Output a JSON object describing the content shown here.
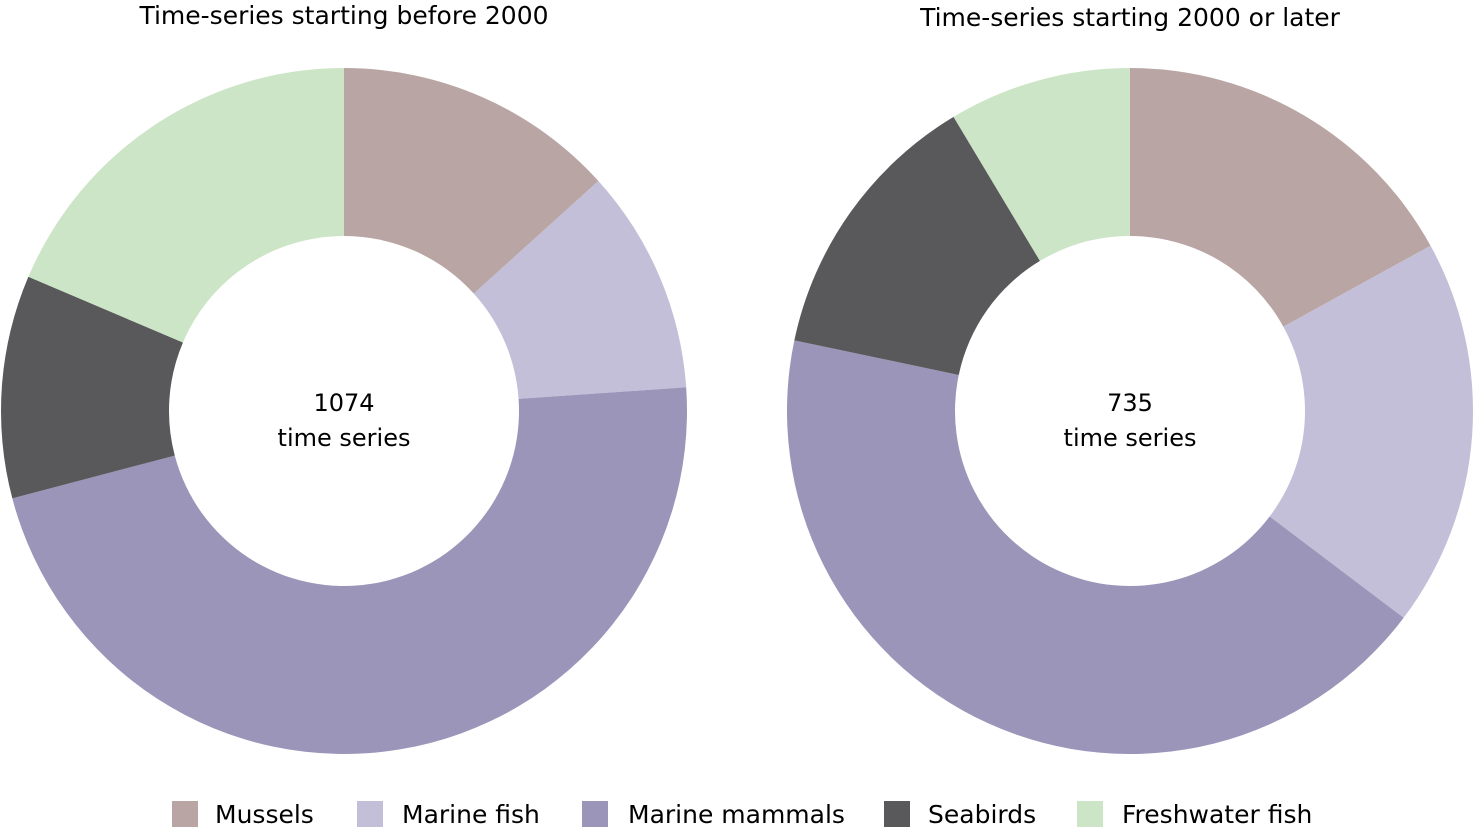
{
  "chart_data": [
    {
      "type": "pie",
      "donut": true,
      "title": "Time-series starting before 2000",
      "center_label": [
        "1074",
        "time series"
      ],
      "categories": [
        "Mussels",
        "Marine fish",
        "Marine mammals",
        "Seabirds",
        "Freshwater fish"
      ],
      "values_percent": [
        13.3,
        10.6,
        47.0,
        10.5,
        18.6
      ]
    },
    {
      "type": "pie",
      "donut": true,
      "title": "Time-series starting 2000 or later",
      "center_label": [
        "735",
        "time series"
      ],
      "categories": [
        "Mussels",
        "Marine fish",
        "Marine mammals",
        "Seabirds",
        "Freshwater fish"
      ],
      "values_percent": [
        17.0,
        18.3,
        43.0,
        13.1,
        8.6
      ]
    }
  ],
  "legend": [
    {
      "label": "Mussels",
      "color": "#b9a6a4"
    },
    {
      "label": "Marine fish",
      "color": "#c3bfd8"
    },
    {
      "label": "Marine mammals",
      "color": "#9b95b9"
    },
    {
      "label": "Seabirds",
      "color": "#59595b"
    },
    {
      "label": "Freshwater fish",
      "color": "#cce5c6"
    }
  ]
}
